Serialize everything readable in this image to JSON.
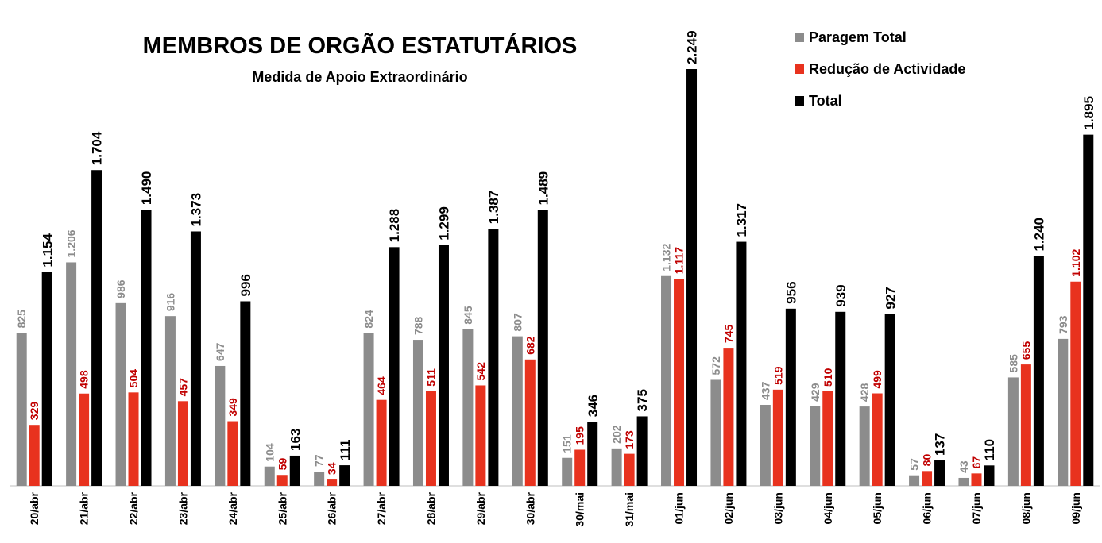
{
  "chart_data": {
    "type": "bar",
    "title": "MEMBROS DE ORGÃO ESTATUTÁRIOS",
    "subtitle": "Medida de Apoio Extraordinário",
    "categories": [
      "20/abr",
      "21/abr",
      "22/abr",
      "23/abr",
      "24/abr",
      "25/abr",
      "26/abr",
      "27/abr",
      "28/abr",
      "29/abr",
      "30/abr",
      "30/mai",
      "31/mai",
      "01/jun",
      "02/jun",
      "03/jun",
      "04/jun",
      "05/jun",
      "06/jun",
      "07/jun",
      "08/jun",
      "09/jun"
    ],
    "series": [
      {
        "name": "Paragem Total",
        "color": "#8c8c8c",
        "label_color": "#8c8c8c",
        "values": [
          825,
          1206,
          986,
          916,
          647,
          104,
          77,
          824,
          788,
          845,
          807,
          151,
          202,
          1132,
          572,
          437,
          429,
          428,
          57,
          43,
          585,
          793
        ],
        "value_labels": [
          "825",
          "1.206",
          "986",
          "916",
          "647",
          "104",
          "77",
          "824",
          "788",
          "845",
          "807",
          "151",
          "202",
          "1.132",
          "572",
          "437",
          "429",
          "428",
          "57",
          "43",
          "585",
          "793"
        ]
      },
      {
        "name": "Redução de Actividade",
        "color": "#e8321e",
        "label_color": "#c00000",
        "values": [
          329,
          498,
          504,
          457,
          349,
          59,
          34,
          464,
          511,
          542,
          682,
          195,
          173,
          1117,
          745,
          519,
          510,
          499,
          80,
          67,
          655,
          1102
        ],
        "value_labels": [
          "329",
          "498",
          "504",
          "457",
          "349",
          "59",
          "34",
          "464",
          "511",
          "542",
          "682",
          "195",
          "173",
          "1.117",
          "745",
          "519",
          "510",
          "499",
          "80",
          "67",
          "655",
          "1.102"
        ]
      },
      {
        "name": "Total",
        "color": "#000000",
        "label_color": "#000000",
        "values": [
          1154,
          1704,
          1490,
          1373,
          996,
          163,
          111,
          1288,
          1299,
          1387,
          1489,
          346,
          375,
          2249,
          1317,
          956,
          939,
          927,
          137,
          110,
          1240,
          1895
        ],
        "value_labels": [
          "1.154",
          "1.704",
          "1.490",
          "1.373",
          "996",
          "163",
          "111",
          "1.288",
          "1.299",
          "1.387",
          "1.489",
          "346",
          "375",
          "2.249",
          "1.317",
          "956",
          "939",
          "927",
          "137",
          "110",
          "1.240",
          "1.895"
        ]
      }
    ],
    "legend": "top-right"
  }
}
